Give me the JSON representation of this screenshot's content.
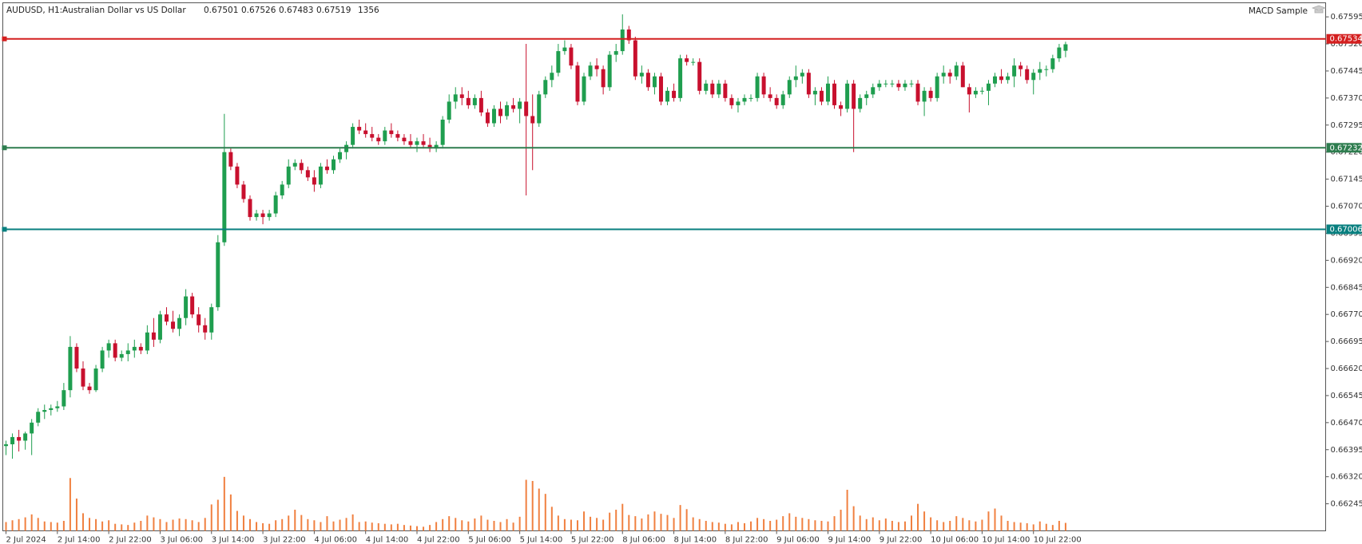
{
  "chart_data": {
    "type": "candlestick",
    "title": "AUDUSD, H1:",
    "subtitle": "Australian Dollar vs US Dollar",
    "indicator": "MACD Sample",
    "up_color": "#1f9e4f",
    "down_color": "#c8102e",
    "volume_color": "#f08040",
    "ylim": [
      0.6617,
      0.67634
    ],
    "xlim": [
      -0.5,
      205.5
    ],
    "volume_lim": [
      0,
      90000
    ],
    "yticks": [
      {
        "value": 0.67595,
        "label": "0.67595"
      },
      {
        "value": 0.6752,
        "label": "0.67520"
      },
      {
        "value": 0.67445,
        "label": "0.67445"
      },
      {
        "value": 0.6737,
        "label": "0.67370"
      },
      {
        "value": 0.67295,
        "label": "0.67295"
      },
      {
        "value": 0.6722,
        "label": "0.67220"
      },
      {
        "value": 0.67145,
        "label": "0.67145"
      },
      {
        "value": 0.6707,
        "label": "0.67070"
      },
      {
        "value": 0.66995,
        "label": "0.66995"
      },
      {
        "value": 0.6692,
        "label": "0.66920"
      },
      {
        "value": 0.66845,
        "label": "0.66845"
      },
      {
        "value": 0.6677,
        "label": "0.66770"
      },
      {
        "value": 0.66695,
        "label": "0.66695"
      },
      {
        "value": 0.6662,
        "label": "0.66620"
      },
      {
        "value": 0.66545,
        "label": "0.66545"
      },
      {
        "value": 0.6647,
        "label": "0.66470"
      },
      {
        "value": 0.66395,
        "label": "0.66395"
      },
      {
        "value": 0.6632,
        "label": "0.66320"
      },
      {
        "value": 0.66245,
        "label": "0.66245"
      }
    ],
    "xticks": [
      {
        "value": 0,
        "label": "2 Jul 2024"
      },
      {
        "value": 8,
        "label": "2 Jul 14:00"
      },
      {
        "value": 16,
        "label": "2 Jul 22:00"
      },
      {
        "value": 24,
        "label": "3 Jul 06:00"
      },
      {
        "value": 32,
        "label": "3 Jul 14:00"
      },
      {
        "value": 40,
        "label": "3 Jul 22:00"
      },
      {
        "value": 48,
        "label": "4 Jul 06:00"
      },
      {
        "value": 56,
        "label": "4 Jul 14:00"
      },
      {
        "value": 64,
        "label": "4 Jul 22:00"
      },
      {
        "value": 72,
        "label": "5 Jul 06:00"
      },
      {
        "value": 80,
        "label": "5 Jul 14:00"
      },
      {
        "value": 88,
        "label": "5 Jul 22:00"
      },
      {
        "value": 96,
        "label": "8 Jul 06:00"
      },
      {
        "value": 104,
        "label": "8 Jul 14:00"
      },
      {
        "value": 112,
        "label": "8 Jul 22:00"
      },
      {
        "value": 120,
        "label": "9 Jul 06:00"
      },
      {
        "value": 128,
        "label": "9 Jul 14:00"
      },
      {
        "value": 136,
        "label": "9 Jul 22:00"
      },
      {
        "value": 144,
        "label": "10 Jul 06:00"
      },
      {
        "value": 152,
        "label": "10 Jul 14:00"
      },
      {
        "value": 160,
        "label": "10 Jul 22:00"
      }
    ],
    "levels": [
      {
        "value": 0.67534,
        "color": "#d41f1f"
      },
      {
        "value": 0.67232,
        "color": "#2e7d4f"
      },
      {
        "value": 0.67006,
        "color": "#087f7f"
      }
    ],
    "ohlc": [
      [
        0.66405,
        0.6642,
        0.6638,
        0.6641
      ],
      [
        0.6641,
        0.6644,
        0.6637,
        0.6643
      ],
      [
        0.6643,
        0.6645,
        0.6639,
        0.6642
      ],
      [
        0.6642,
        0.66445,
        0.66395,
        0.6644
      ],
      [
        0.6644,
        0.6648,
        0.6638,
        0.6647
      ],
      [
        0.6647,
        0.6651,
        0.6646,
        0.665
      ],
      [
        0.665,
        0.6652,
        0.6648,
        0.66505
      ],
      [
        0.66505,
        0.6652,
        0.6649,
        0.6651
      ],
      [
        0.6651,
        0.6653,
        0.665,
        0.66515
      ],
      [
        0.66515,
        0.6658,
        0.66505,
        0.6656
      ],
      [
        0.6656,
        0.6671,
        0.6654,
        0.6668
      ],
      [
        0.6668,
        0.6669,
        0.6661,
        0.6662
      ],
      [
        0.6662,
        0.6664,
        0.6656,
        0.6657
      ],
      [
        0.6657,
        0.6658,
        0.6655,
        0.6656
      ],
      [
        0.6656,
        0.6663,
        0.66555,
        0.6662
      ],
      [
        0.6662,
        0.6668,
        0.6661,
        0.6667
      ],
      [
        0.6667,
        0.667,
        0.6665,
        0.6669
      ],
      [
        0.6669,
        0.667,
        0.6664,
        0.6665
      ],
      [
        0.6665,
        0.6667,
        0.6664,
        0.6666
      ],
      [
        0.6666,
        0.6669,
        0.6664,
        0.6667
      ],
      [
        0.6667,
        0.667,
        0.6665,
        0.6668
      ],
      [
        0.6668,
        0.6669,
        0.6666,
        0.6667
      ],
      [
        0.6667,
        0.6674,
        0.6666,
        0.6672
      ],
      [
        0.6672,
        0.6676,
        0.6668,
        0.667
      ],
      [
        0.667,
        0.6678,
        0.6669,
        0.6677
      ],
      [
        0.6677,
        0.6679,
        0.6674,
        0.6675
      ],
      [
        0.6675,
        0.6678,
        0.6672,
        0.6673
      ],
      [
        0.6673,
        0.6677,
        0.6671,
        0.6676
      ],
      [
        0.6676,
        0.6684,
        0.6674,
        0.6682
      ],
      [
        0.6682,
        0.6683,
        0.6676,
        0.6677
      ],
      [
        0.6677,
        0.6679,
        0.6672,
        0.6674
      ],
      [
        0.6674,
        0.6676,
        0.667,
        0.6672
      ],
      [
        0.6672,
        0.668,
        0.667,
        0.6679
      ],
      [
        0.6679,
        0.6699,
        0.6678,
        0.6697
      ],
      [
        0.6697,
        0.67326,
        0.6696,
        0.6722
      ],
      [
        0.6722,
        0.6723,
        0.6717,
        0.6718
      ],
      [
        0.6718,
        0.6719,
        0.6712,
        0.6713
      ],
      [
        0.6713,
        0.6714,
        0.6708,
        0.6709
      ],
      [
        0.6709,
        0.671,
        0.6703,
        0.6704
      ],
      [
        0.6704,
        0.6706,
        0.6703,
        0.6705
      ],
      [
        0.6705,
        0.6706,
        0.6702,
        0.6704
      ],
      [
        0.6704,
        0.6706,
        0.6703,
        0.6705
      ],
      [
        0.6705,
        0.6711,
        0.6704,
        0.671
      ],
      [
        0.671,
        0.6714,
        0.6709,
        0.6713
      ],
      [
        0.6713,
        0.672,
        0.6712,
        0.6718
      ],
      [
        0.6718,
        0.672,
        0.6717,
        0.6719
      ],
      [
        0.6719,
        0.672,
        0.6716,
        0.6717
      ],
      [
        0.6717,
        0.6718,
        0.6714,
        0.6715
      ],
      [
        0.6715,
        0.6717,
        0.6711,
        0.6713
      ],
      [
        0.6713,
        0.6719,
        0.6712,
        0.6718
      ],
      [
        0.6718,
        0.672,
        0.6716,
        0.6717
      ],
      [
        0.6717,
        0.6721,
        0.6716,
        0.672
      ],
      [
        0.672,
        0.6723,
        0.6719,
        0.6722
      ],
      [
        0.6722,
        0.6725,
        0.672,
        0.6724
      ],
      [
        0.6724,
        0.673,
        0.6723,
        0.6729
      ],
      [
        0.6729,
        0.6731,
        0.6727,
        0.6728
      ],
      [
        0.6728,
        0.673,
        0.6726,
        0.6727
      ],
      [
        0.6727,
        0.6729,
        0.6725,
        0.6726
      ],
      [
        0.6726,
        0.6727,
        0.6724,
        0.6725
      ],
      [
        0.6725,
        0.6729,
        0.6724,
        0.6728
      ],
      [
        0.6728,
        0.673,
        0.6726,
        0.6727
      ],
      [
        0.6727,
        0.6728,
        0.6725,
        0.6726
      ],
      [
        0.6726,
        0.6727,
        0.6724,
        0.6725
      ],
      [
        0.6725,
        0.6727,
        0.6723,
        0.6724
      ],
      [
        0.6724,
        0.6726,
        0.6722,
        0.6725
      ],
      [
        0.6725,
        0.6727,
        0.6723,
        0.6724
      ],
      [
        0.6724,
        0.6726,
        0.6722,
        0.6723
      ],
      [
        0.6723,
        0.6725,
        0.6722,
        0.6724
      ],
      [
        0.6724,
        0.6732,
        0.6723,
        0.6731
      ],
      [
        0.6731,
        0.6738,
        0.673,
        0.6736
      ],
      [
        0.6736,
        0.674,
        0.6734,
        0.6738
      ],
      [
        0.6738,
        0.674,
        0.6735,
        0.6737
      ],
      [
        0.6737,
        0.6739,
        0.6734,
        0.6735
      ],
      [
        0.6735,
        0.6738,
        0.6734,
        0.6737
      ],
      [
        0.6737,
        0.6739,
        0.6732,
        0.6733
      ],
      [
        0.6733,
        0.6734,
        0.6729,
        0.673
      ],
      [
        0.673,
        0.6735,
        0.6729,
        0.6734
      ],
      [
        0.6734,
        0.6736,
        0.673,
        0.6732
      ],
      [
        0.6732,
        0.6736,
        0.6731,
        0.6735
      ],
      [
        0.6735,
        0.6737,
        0.6733,
        0.6734
      ],
      [
        0.6734,
        0.6737,
        0.673,
        0.6736
      ],
      [
        0.6736,
        0.6752,
        0.671,
        0.6732
      ],
      [
        0.6732,
        0.6738,
        0.6717,
        0.673
      ],
      [
        0.673,
        0.6739,
        0.6729,
        0.6738
      ],
      [
        0.6738,
        0.6743,
        0.6737,
        0.6742
      ],
      [
        0.6742,
        0.6746,
        0.674,
        0.6744
      ],
      [
        0.6744,
        0.6752,
        0.6743,
        0.675
      ],
      [
        0.675,
        0.6753,
        0.6749,
        0.6751
      ],
      [
        0.6751,
        0.6752,
        0.6745,
        0.6746
      ],
      [
        0.6746,
        0.6747,
        0.6735,
        0.6736
      ],
      [
        0.6736,
        0.6744,
        0.6735,
        0.6743
      ],
      [
        0.6743,
        0.6747,
        0.6742,
        0.6746
      ],
      [
        0.6746,
        0.6748,
        0.6743,
        0.6745
      ],
      [
        0.6745,
        0.6746,
        0.6738,
        0.674
      ],
      [
        0.674,
        0.675,
        0.6739,
        0.6749
      ],
      [
        0.6749,
        0.6752,
        0.6747,
        0.675
      ],
      [
        0.675,
        0.67602,
        0.6749,
        0.6756
      ],
      [
        0.6756,
        0.6757,
        0.6752,
        0.6753
      ],
      [
        0.6753,
        0.6754,
        0.6742,
        0.6743
      ],
      [
        0.6743,
        0.6746,
        0.6741,
        0.6744
      ],
      [
        0.6744,
        0.6745,
        0.6739,
        0.674
      ],
      [
        0.674,
        0.6744,
        0.6738,
        0.6743
      ],
      [
        0.6743,
        0.6744,
        0.6735,
        0.6736
      ],
      [
        0.6736,
        0.674,
        0.6735,
        0.6739
      ],
      [
        0.6739,
        0.6741,
        0.6736,
        0.6737
      ],
      [
        0.6737,
        0.6749,
        0.6736,
        0.6748
      ],
      [
        0.6748,
        0.6749,
        0.6746,
        0.6747
      ],
      [
        0.6747,
        0.6748,
        0.6746,
        0.6747
      ],
      [
        0.6747,
        0.6748,
        0.6738,
        0.6739
      ],
      [
        0.6739,
        0.6742,
        0.6738,
        0.6741
      ],
      [
        0.6741,
        0.6742,
        0.6737,
        0.6738
      ],
      [
        0.6738,
        0.6742,
        0.6737,
        0.6741
      ],
      [
        0.6741,
        0.6742,
        0.6736,
        0.6737
      ],
      [
        0.6737,
        0.6738,
        0.6734,
        0.6735
      ],
      [
        0.6735,
        0.6737,
        0.6733,
        0.6736
      ],
      [
        0.6736,
        0.6738,
        0.6735,
        0.6737
      ],
      [
        0.6737,
        0.6738,
        0.6736,
        0.6737
      ],
      [
        0.6737,
        0.6744,
        0.6736,
        0.6743
      ],
      [
        0.6743,
        0.6744,
        0.6737,
        0.6738
      ],
      [
        0.6738,
        0.674,
        0.6736,
        0.6737
      ],
      [
        0.6737,
        0.6738,
        0.6734,
        0.6735
      ],
      [
        0.6735,
        0.6739,
        0.6734,
        0.6738
      ],
      [
        0.6738,
        0.6743,
        0.6737,
        0.6742
      ],
      [
        0.6742,
        0.6746,
        0.674,
        0.6743
      ],
      [
        0.6743,
        0.6745,
        0.6741,
        0.6744
      ],
      [
        0.6744,
        0.6745,
        0.6737,
        0.6738
      ],
      [
        0.6738,
        0.674,
        0.6735,
        0.6739
      ],
      [
        0.6739,
        0.674,
        0.6735,
        0.6736
      ],
      [
        0.6736,
        0.6743,
        0.6735,
        0.6741
      ],
      [
        0.6741,
        0.6742,
        0.6734,
        0.6735
      ],
      [
        0.6735,
        0.6736,
        0.6732,
        0.6734
      ],
      [
        0.6734,
        0.6742,
        0.6733,
        0.6741
      ],
      [
        0.6741,
        0.6742,
        0.6722,
        0.6734
      ],
      [
        0.6734,
        0.6738,
        0.6733,
        0.6737
      ],
      [
        0.6737,
        0.6739,
        0.6735,
        0.6738
      ],
      [
        0.6738,
        0.6741,
        0.6737,
        0.674
      ],
      [
        0.674,
        0.6742,
        0.6739,
        0.6741
      ],
      [
        0.6741,
        0.6742,
        0.674,
        0.6741
      ],
      [
        0.6741,
        0.6742,
        0.674,
        0.6741
      ],
      [
        0.6741,
        0.6742,
        0.6739,
        0.674
      ],
      [
        0.674,
        0.6742,
        0.6739,
        0.6741
      ],
      [
        0.6741,
        0.6742,
        0.674,
        0.6741
      ],
      [
        0.6741,
        0.6742,
        0.6735,
        0.6736
      ],
      [
        0.6736,
        0.674,
        0.6732,
        0.6739
      ],
      [
        0.6739,
        0.674,
        0.6736,
        0.6737
      ],
      [
        0.6737,
        0.6744,
        0.6736,
        0.6743
      ],
      [
        0.6743,
        0.6746,
        0.6741,
        0.6744
      ],
      [
        0.6744,
        0.6745,
        0.6741,
        0.6743
      ],
      [
        0.6743,
        0.6747,
        0.6742,
        0.6746
      ],
      [
        0.6746,
        0.6747,
        0.674,
        0.674
      ],
      [
        0.674,
        0.6741,
        0.6733,
        0.6738
      ],
      [
        0.6738,
        0.674,
        0.6737,
        0.6739
      ],
      [
        0.6739,
        0.674,
        0.6738,
        0.6739
      ],
      [
        0.6739,
        0.6742,
        0.6735,
        0.6741
      ],
      [
        0.6741,
        0.6744,
        0.674,
        0.6743
      ],
      [
        0.6743,
        0.6745,
        0.6741,
        0.6742
      ],
      [
        0.6742,
        0.6744,
        0.6741,
        0.6743
      ],
      [
        0.6743,
        0.6748,
        0.674,
        0.6746
      ],
      [
        0.6746,
        0.6747,
        0.6743,
        0.6745
      ],
      [
        0.6745,
        0.6746,
        0.6741,
        0.6742
      ],
      [
        0.6742,
        0.6745,
        0.6738,
        0.6744
      ],
      [
        0.6744,
        0.6747,
        0.6742,
        0.6745
      ],
      [
        0.6745,
        0.6746,
        0.6743,
        0.6745
      ],
      [
        0.6745,
        0.6749,
        0.6744,
        0.6748
      ],
      [
        0.6748,
        0.6752,
        0.6747,
        0.6751
      ],
      [
        0.67501,
        0.67526,
        0.67483,
        0.67519
      ]
    ],
    "volumes": [
      1500,
      1800,
      2000,
      2300,
      2800,
      2200,
      1600,
      1500,
      1400,
      1700,
      9000,
      5500,
      3000,
      2200,
      2000,
      1600,
      1800,
      1200,
      1100,
      1000,
      1400,
      1700,
      2600,
      2300,
      2000,
      1500,
      1900,
      2100,
      2000,
      1800,
      1500,
      2200,
      4500,
      5300,
      9200,
      6200,
      3400,
      2600,
      2000,
      1500,
      1300,
      1200,
      1800,
      2000,
      2600,
      3600,
      2700,
      2000,
      1800,
      1500,
      2500,
      1600,
      1900,
      2200,
      2800,
      1500,
      1600,
      1400,
      1300,
      1200,
      1100,
      1200,
      1000,
      900,
      800,
      700,
      1000,
      1500,
      2000,
      2500,
      2200,
      1800,
      1600,
      2100,
      2600,
      1900,
      1700,
      1500,
      2000,
      1400,
      2400,
      8700,
      8500,
      7200,
      6300,
      4100,
      2600,
      2000,
      1900,
      1800,
      3300,
      2400,
      2200,
      1900,
      3100,
      3600,
      4600,
      2700,
      2500,
      2100,
      2800,
      3300,
      2900,
      2700,
      2200,
      4400,
      3700,
      2300,
      2000,
      1700,
      1500,
      1400,
      1200,
      1100,
      1500,
      1300,
      1600,
      2200,
      2000,
      1700,
      1900,
      2500,
      3000,
      2400,
      2200,
      2000,
      1800,
      1700,
      1600,
      2500,
      3600,
      7000,
      4200,
      2600,
      2000,
      2300,
      1800,
      2100,
      1700,
      1500,
      1600,
      2600,
      4600,
      3300,
      2300,
      1800,
      1500,
      1700,
      2500,
      2200,
      1800,
      1600,
      1900,
      3300,
      3800,
      2600,
      1700,
      1500,
      1400,
      1300,
      1100,
      1600,
      1200,
      1000,
      1700,
      1356
    ]
  }
}
